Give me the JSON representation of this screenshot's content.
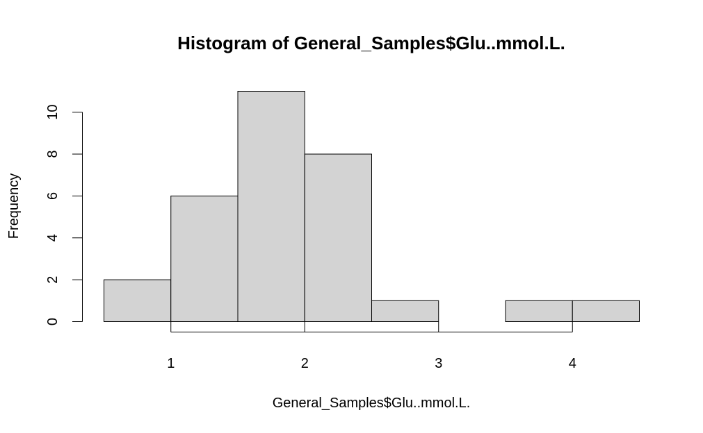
{
  "chart_data": {
    "type": "bar",
    "title": "Histogram of General_Samples$Glu..mmol.L.",
    "xlabel": "General_Samples$Glu..mmol.L.",
    "ylabel": "Frequency",
    "bins": [
      {
        "start": 0.5,
        "end": 1.0,
        "count": 2
      },
      {
        "start": 1.0,
        "end": 1.5,
        "count": 6
      },
      {
        "start": 1.5,
        "end": 2.0,
        "count": 11
      },
      {
        "start": 2.0,
        "end": 2.5,
        "count": 8
      },
      {
        "start": 2.5,
        "end": 3.0,
        "count": 1
      },
      {
        "start": 3.0,
        "end": 3.5,
        "count": 0
      },
      {
        "start": 3.5,
        "end": 4.0,
        "count": 1
      },
      {
        "start": 4.0,
        "end": 4.5,
        "count": 1
      }
    ],
    "x_ticks": [
      1,
      2,
      3,
      4
    ],
    "y_ticks": [
      0,
      2,
      4,
      6,
      8,
      10
    ],
    "xlim": [
      0.5,
      4.5
    ],
    "ylim": [
      0,
      11
    ],
    "grid": false,
    "colors": {
      "bar_fill": "#d3d3d3",
      "bar_stroke": "#000000"
    }
  }
}
